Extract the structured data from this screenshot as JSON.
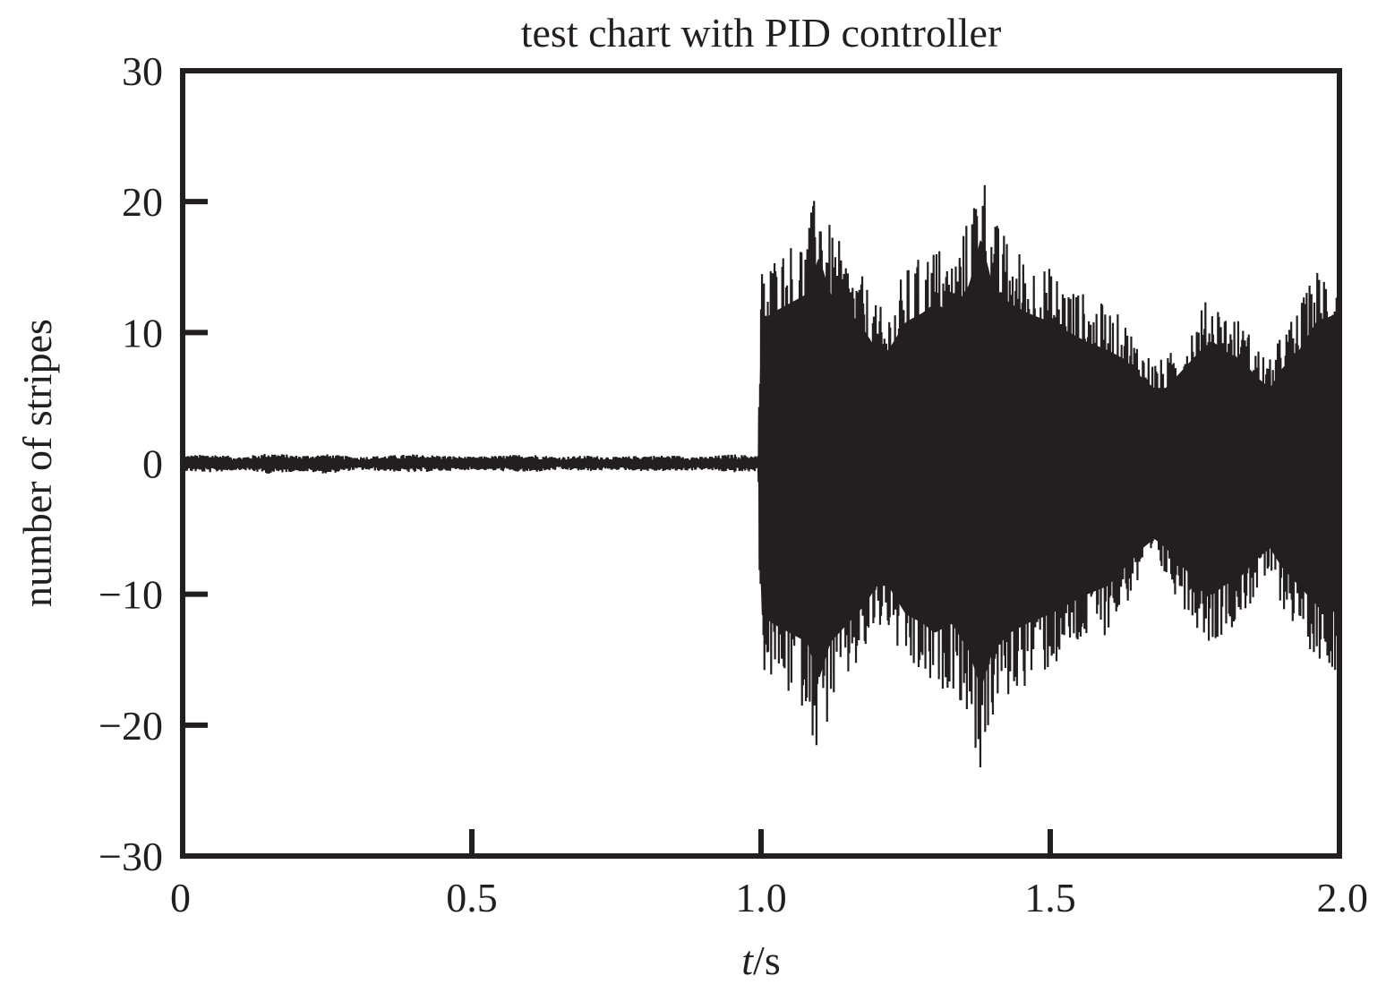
{
  "chart_data": {
    "type": "line",
    "title": "test chart with PID controller",
    "xlabel_italic": "t",
    "xlabel_rest": "/s",
    "ylabel": "number of stripes",
    "xlim": [
      0,
      2.0
    ],
    "ylim": [
      -30,
      30
    ],
    "x_ticks": [
      0,
      0.5,
      1.0,
      1.5,
      2.0
    ],
    "x_tick_labels": [
      "0",
      "0.5",
      "1.0",
      "1.5",
      "2.0"
    ],
    "y_ticks": [
      30,
      20,
      10,
      0,
      -10,
      -20,
      -30
    ],
    "y_tick_labels": [
      "30",
      "20",
      "10",
      "0",
      "−10",
      "−20",
      "−30"
    ],
    "grid": false,
    "series": [
      {
        "color": "#231f20",
        "envelope": {
          "x": [
            0,
            0.05,
            0.1,
            0.15,
            0.2,
            0.25,
            0.3,
            0.35,
            0.4,
            0.45,
            0.5,
            0.55,
            0.6,
            0.65,
            0.7,
            0.75,
            0.8,
            0.85,
            0.9,
            0.95,
            0.995,
            1.0,
            1.02,
            1.05,
            1.08,
            1.1,
            1.12,
            1.15,
            1.18,
            1.2,
            1.22,
            1.25,
            1.28,
            1.3,
            1.33,
            1.36,
            1.38,
            1.4,
            1.43,
            1.46,
            1.5,
            1.53,
            1.56,
            1.6,
            1.63,
            1.66,
            1.68,
            1.7,
            1.73,
            1.76,
            1.78,
            1.8,
            1.83,
            1.86,
            1.88,
            1.9,
            1.93,
            1.96,
            2.0
          ],
          "upper": [
            0.6,
            0.7,
            0.5,
            0.8,
            0.6,
            0.7,
            0.5,
            0.6,
            0.7,
            0.6,
            0.5,
            0.6,
            0.7,
            0.5,
            0.6,
            0.5,
            0.6,
            0.6,
            0.5,
            0.7,
            0.6,
            15,
            16,
            17,
            18,
            22,
            18,
            16,
            14,
            12,
            12,
            15,
            16,
            17,
            16,
            19,
            24,
            19,
            17,
            16,
            15,
            14,
            13,
            12,
            11,
            9,
            8,
            8,
            10,
            12,
            13,
            12,
            11,
            9,
            8,
            10,
            12,
            15,
            16
          ],
          "lower": [
            -0.6,
            -0.7,
            -0.5,
            -0.8,
            -0.6,
            -0.8,
            -0.5,
            -0.6,
            -0.7,
            -0.6,
            -0.5,
            -0.6,
            -0.7,
            -0.5,
            -0.6,
            -0.5,
            -0.6,
            -0.6,
            -0.5,
            -0.7,
            -0.6,
            -16,
            -17,
            -18,
            -19,
            -23,
            -19,
            -17,
            -15,
            -13,
            -13,
            -16,
            -17,
            -18,
            -17,
            -20,
            -24,
            -20,
            -18,
            -17,
            -16,
            -15,
            -14,
            -13,
            -11,
            -9,
            -8,
            -9,
            -11,
            -13,
            -14,
            -13,
            -12,
            -10,
            -9,
            -11,
            -13,
            -15,
            -16
          ]
        }
      }
    ]
  }
}
